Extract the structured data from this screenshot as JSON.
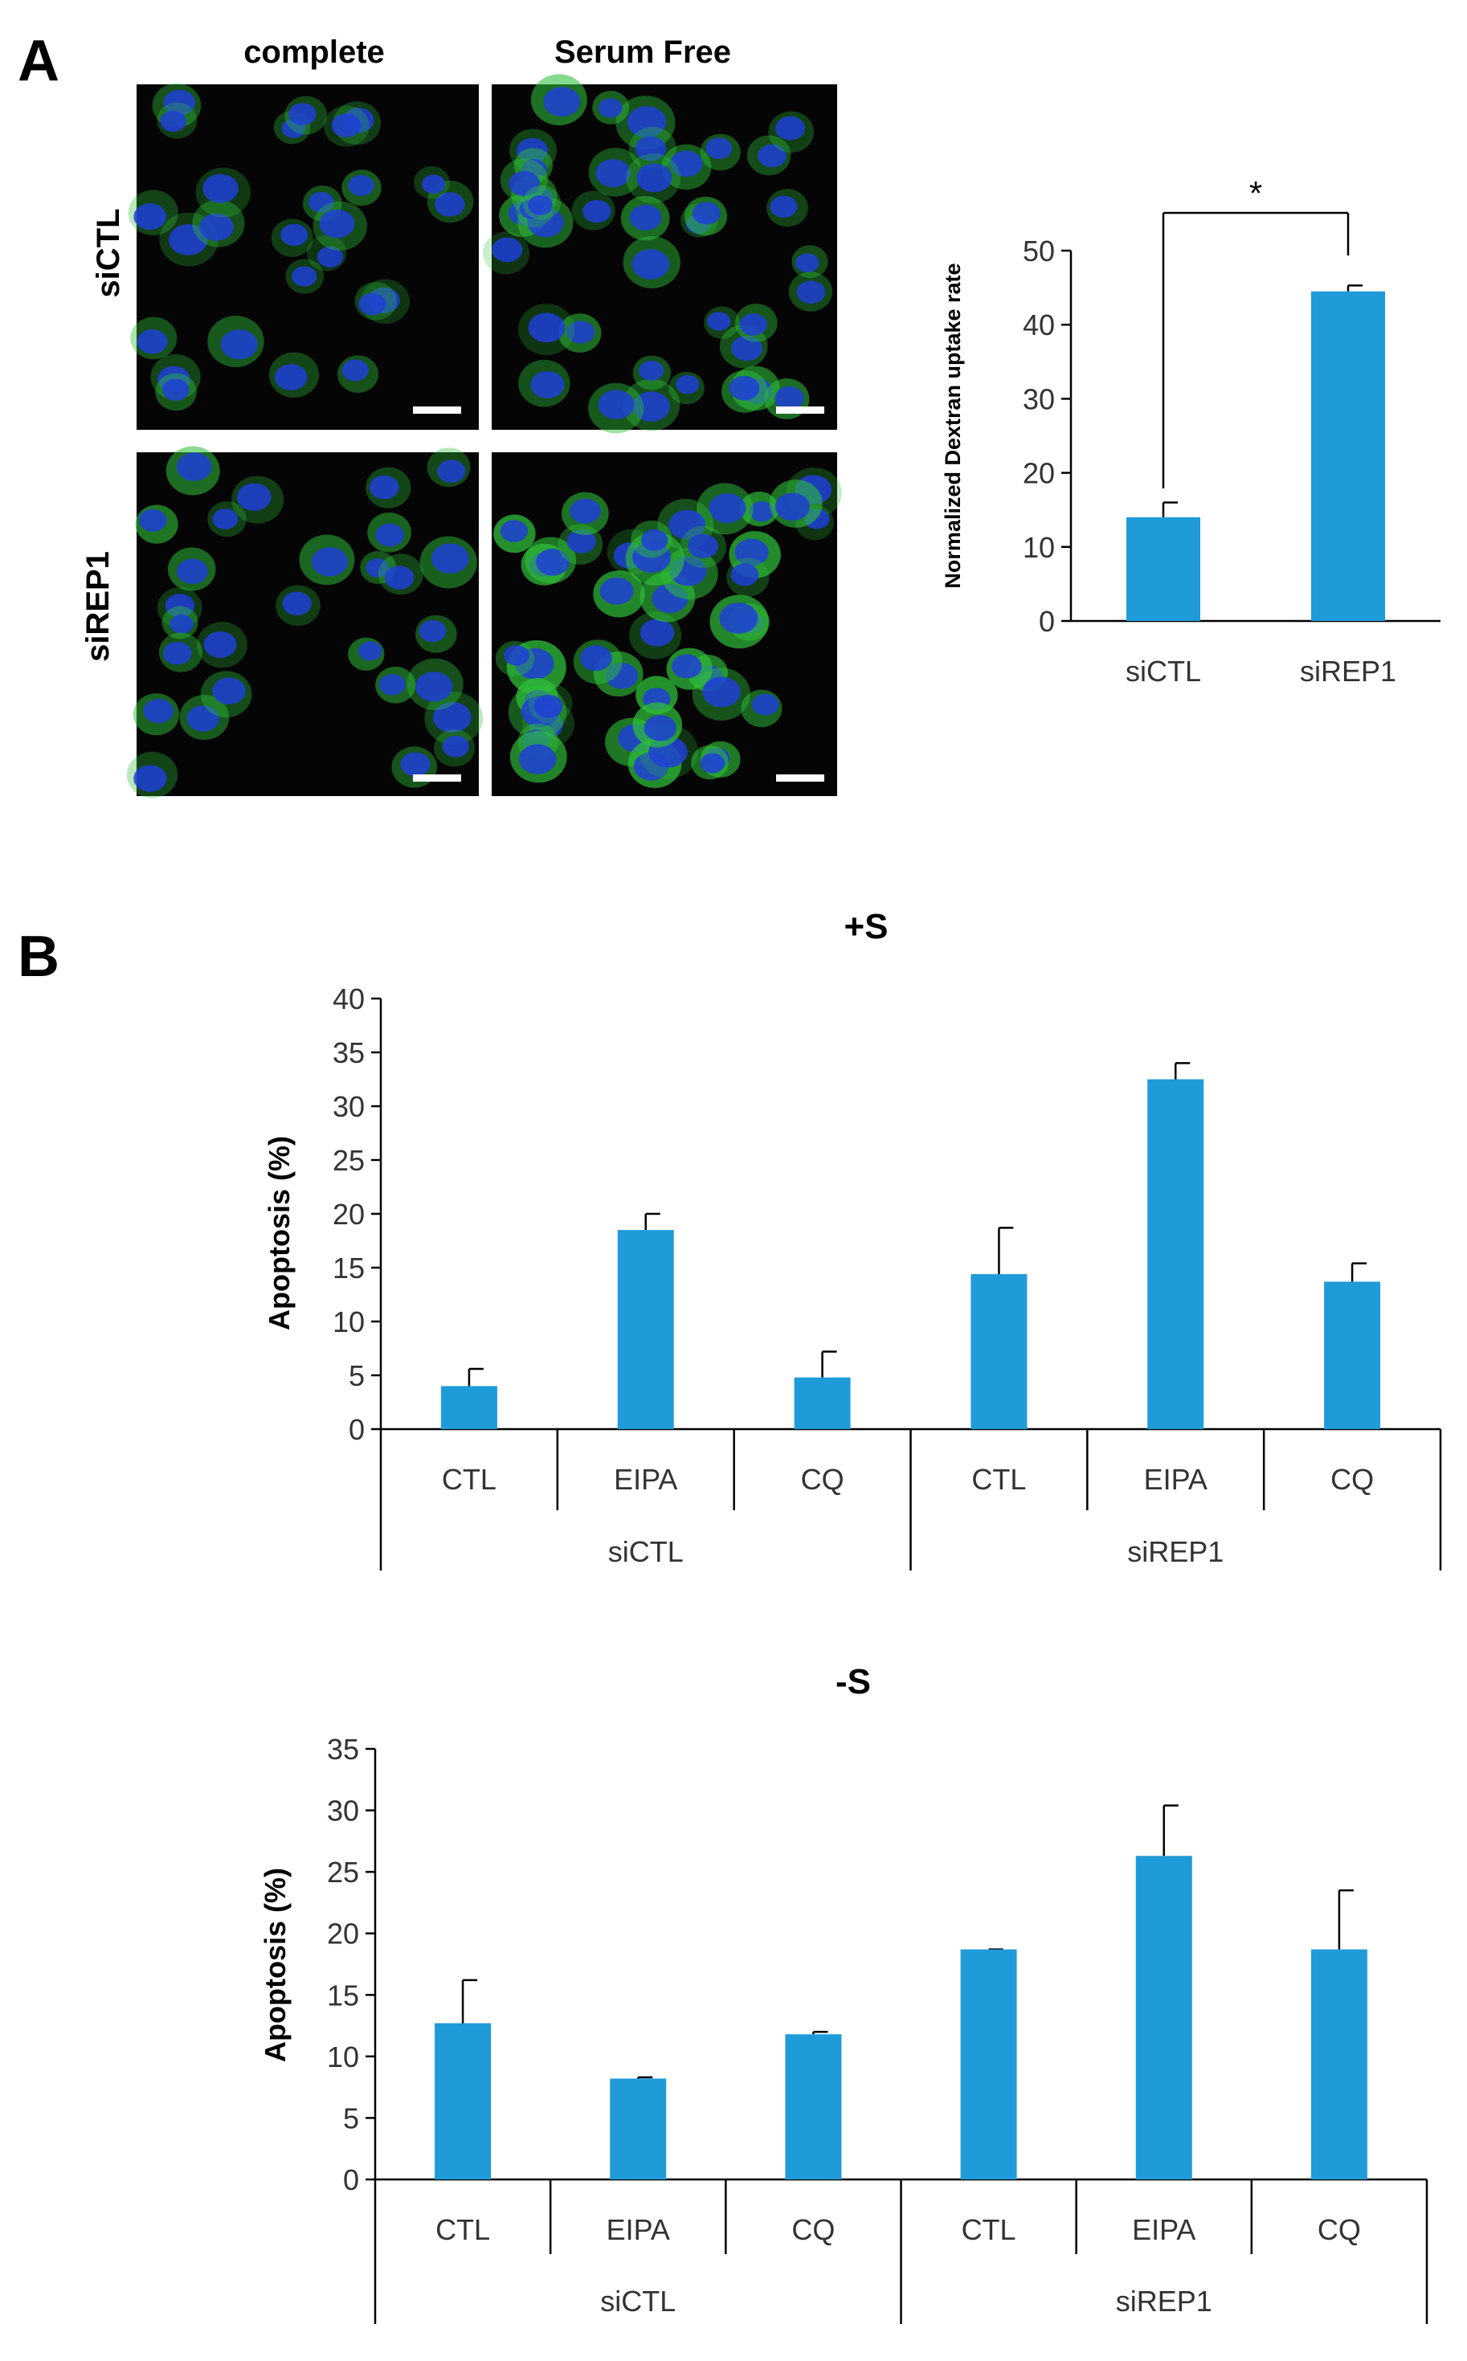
{
  "panel_a": {
    "label": "A",
    "micrographs": {
      "column_headers": [
        "complete",
        "Serum Free"
      ],
      "row_headers": [
        "siCTL",
        "siREP1"
      ]
    }
  },
  "panel_b": {
    "label": "B"
  },
  "colors": {
    "bar": "#1f9bd9",
    "axis": "#000000",
    "micrograph_bg": "#050505",
    "nucleus": "#1f3fd6",
    "dextran": "#2fbf3a"
  },
  "chart_data": [
    {
      "id": "dextran",
      "type": "bar",
      "title": "",
      "xlabel": "",
      "ylabel": "Normalized Dextran uptake rate",
      "categories": [
        "siCTL",
        "siREP1"
      ],
      "values": [
        14,
        44.5
      ],
      "errors": [
        2,
        0.8
      ],
      "ylim": [
        0,
        50
      ],
      "yticks": [
        0,
        10,
        20,
        30,
        40,
        50
      ],
      "annotation": "*",
      "grid": false,
      "legend": "none"
    },
    {
      "id": "plus_s",
      "type": "bar",
      "title": "+S",
      "xlabel": "",
      "ylabel": "Apoptosis (%)",
      "categories": [
        "CTL",
        "EIPA",
        "CQ",
        "CTL",
        "EIPA",
        "CQ"
      ],
      "groups": [
        "siCTL",
        "siREP1"
      ],
      "values": [
        4,
        18.5,
        4.8,
        14.4,
        32.5,
        13.7
      ],
      "errors": [
        1.6,
        1.5,
        2.4,
        4.3,
        1.5,
        1.7
      ],
      "ylim": [
        0,
        40
      ],
      "yticks": [
        0,
        5,
        10,
        15,
        20,
        25,
        30,
        35,
        40
      ],
      "grid": false,
      "legend": "none"
    },
    {
      "id": "minus_s",
      "type": "bar",
      "title": "-S",
      "xlabel": "",
      "ylabel": "Apoptosis (%)",
      "categories": [
        "CTL",
        "EIPA",
        "CQ",
        "CTL",
        "EIPA",
        "CQ"
      ],
      "groups": [
        "siCTL",
        "siREP1"
      ],
      "values": [
        12.7,
        8.2,
        11.8,
        18.7,
        26.3,
        18.7
      ],
      "errors": [
        3.5,
        0.1,
        0.2,
        0.0,
        4.1,
        4.8
      ],
      "ylim": [
        0,
        35
      ],
      "yticks": [
        0,
        5,
        10,
        15,
        20,
        25,
        30,
        35
      ],
      "grid": false,
      "legend": "none"
    }
  ]
}
